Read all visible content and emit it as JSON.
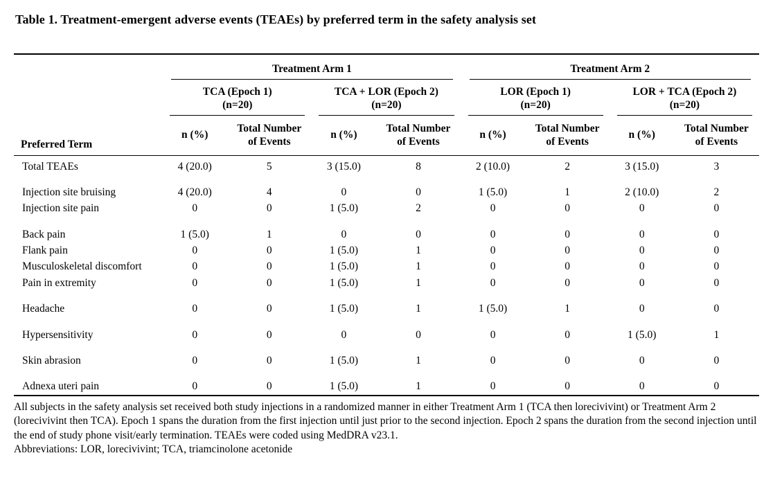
{
  "page": {
    "title": "Table 1. Treatment-emergent adverse events (TEAEs) by preferred term in the safety analysis set"
  },
  "table": {
    "preferred_term_header": "Preferred Term",
    "arms": [
      {
        "label": "Treatment Arm 1",
        "epochs": [
          "TCA (Epoch 1)\n(n=20)",
          "TCA + LOR (Epoch 2)\n(n=20)"
        ]
      },
      {
        "label": "Treatment Arm 2",
        "epochs": [
          "LOR (Epoch 1)\n(n=20)",
          "LOR + TCA (Epoch 2)\n(n=20)"
        ]
      }
    ],
    "subheaders": [
      "n (%)",
      "Total Number of Events"
    ],
    "row_groups": [
      [
        {
          "term": "Total TEAEs",
          "values": [
            "4 (20.0)",
            "5",
            "3 (15.0)",
            "8",
            "2 (10.0)",
            "2",
            "3 (15.0)",
            "3"
          ]
        }
      ],
      [
        {
          "term": "Injection site bruising",
          "values": [
            "4 (20.0)",
            "4",
            "0",
            "0",
            "1 (5.0)",
            "1",
            "2 (10.0)",
            "2"
          ]
        },
        {
          "term": "Injection site pain",
          "values": [
            "0",
            "0",
            "1 (5.0)",
            "2",
            "0",
            "0",
            "0",
            "0"
          ]
        }
      ],
      [
        {
          "term": "Back pain",
          "values": [
            "1 (5.0)",
            "1",
            "0",
            "0",
            "0",
            "0",
            "0",
            "0"
          ]
        },
        {
          "term": "Flank pain",
          "values": [
            "0",
            "0",
            "1 (5.0)",
            "1",
            "0",
            "0",
            "0",
            "0"
          ]
        },
        {
          "term": "Musculoskeletal discomfort",
          "values": [
            "0",
            "0",
            "1 (5.0)",
            "1",
            "0",
            "0",
            "0",
            "0"
          ]
        },
        {
          "term": "Pain in extremity",
          "values": [
            "0",
            "0",
            "1 (5.0)",
            "1",
            "0",
            "0",
            "0",
            "0"
          ]
        }
      ],
      [
        {
          "term": "Headache",
          "values": [
            "0",
            "0",
            "1 (5.0)",
            "1",
            "1 (5.0)",
            "1",
            "0",
            "0"
          ]
        }
      ],
      [
        {
          "term": "Hypersensitivity",
          "values": [
            "0",
            "0",
            "0",
            "0",
            "0",
            "0",
            "1 (5.0)",
            "1"
          ]
        }
      ],
      [
        {
          "term": "Skin abrasion",
          "values": [
            "0",
            "0",
            "1 (5.0)",
            "1",
            "0",
            "0",
            "0",
            "0"
          ]
        }
      ],
      [
        {
          "term": "Adnexa uteri pain",
          "values": [
            "0",
            "0",
            "1 (5.0)",
            "1",
            "0",
            "0",
            "0",
            "0"
          ]
        }
      ]
    ]
  },
  "footnotes": {
    "note": "All subjects in the safety analysis set received both study injections in a randomized manner in either Treatment Arm 1 (TCA then lorecivivint) or Treatment Arm 2 (lorecivivint then TCA). Epoch 1 spans the duration from the first injection until just prior to the second injection. Epoch 2 spans the duration from the second injection until the end of study phone visit/early termination. TEAEs were coded using MedDRA v23.1.",
    "abbreviations": "Abbreviations: LOR, lorecivivint; TCA, triamcinolone acetonide"
  }
}
